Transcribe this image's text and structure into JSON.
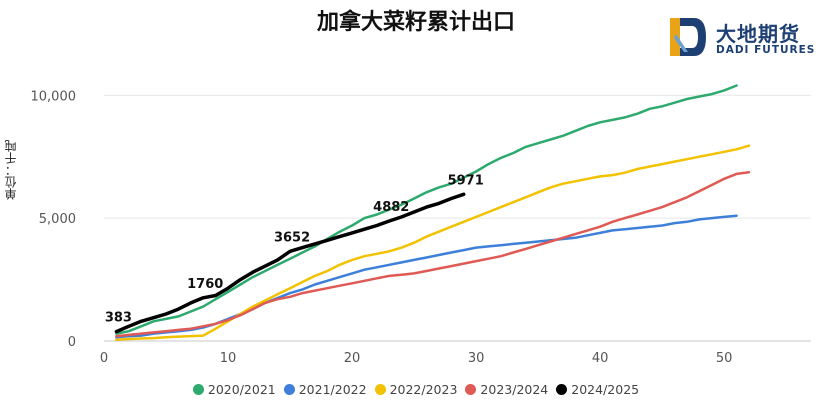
{
  "chart_data": {
    "type": "line",
    "title": "加拿大菜籽累计出口",
    "ylabel": "单位：千吨",
    "xlabel": "",
    "xlim": [
      0,
      57
    ],
    "ylim": [
      0,
      10500
    ],
    "x_ticks": [
      0,
      10,
      20,
      30,
      40,
      50
    ],
    "y_ticks": [
      0,
      5000,
      10000
    ],
    "y_tick_labels": [
      "0",
      "5,000",
      "10,000"
    ],
    "grid": true,
    "legend_position": "bottom",
    "series": [
      {
        "name": "2020/2021",
        "color": "#2eaa6e",
        "x": [
          1,
          2,
          3,
          4,
          5,
          6,
          7,
          8,
          9,
          10,
          11,
          12,
          13,
          14,
          15,
          16,
          17,
          18,
          19,
          20,
          21,
          22,
          23,
          24,
          25,
          26,
          27,
          28,
          29,
          30,
          31,
          32,
          33,
          34,
          35,
          36,
          37,
          38,
          39,
          40,
          41,
          42,
          43,
          44,
          45,
          46,
          47,
          48,
          49,
          50,
          51
        ],
        "values": [
          300,
          400,
          600,
          800,
          900,
          1000,
          1200,
          1400,
          1700,
          2000,
          2300,
          2600,
          2850,
          3100,
          3350,
          3600,
          3850,
          4150,
          4450,
          4700,
          5000,
          5150,
          5350,
          5550,
          5800,
          6050,
          6250,
          6400,
          6650,
          6900,
          7200,
          7450,
          7650,
          7900,
          8050,
          8200,
          8350,
          8550,
          8750,
          8900,
          9000,
          9100,
          9250,
          9450,
          9550,
          9700,
          9850,
          9950,
          10050,
          10200,
          10400
        ]
      },
      {
        "name": "2021/2022",
        "color": "#3d7fd9",
        "x": [
          1,
          2,
          3,
          4,
          5,
          6,
          7,
          8,
          9,
          10,
          11,
          12,
          13,
          14,
          15,
          16,
          17,
          18,
          19,
          20,
          21,
          22,
          23,
          24,
          25,
          26,
          27,
          28,
          29,
          30,
          31,
          32,
          33,
          34,
          35,
          36,
          37,
          38,
          39,
          40,
          41,
          42,
          43,
          44,
          45,
          46,
          47,
          48,
          49,
          50,
          51
        ],
        "values": [
          150,
          200,
          220,
          300,
          350,
          400,
          450,
          550,
          700,
          900,
          1100,
          1300,
          1550,
          1750,
          1950,
          2100,
          2300,
          2450,
          2600,
          2750,
          2900,
          3000,
          3100,
          3200,
          3300,
          3400,
          3500,
          3600,
          3700,
          3800,
          3850,
          3900,
          3950,
          4000,
          4050,
          4100,
          4150,
          4200,
          4300,
          4400,
          4500,
          4550,
          4600,
          4650,
          4700,
          4800,
          4850,
          4950,
          5000,
          5050,
          5100
        ]
      },
      {
        "name": "2022/2023",
        "color": "#f2c200",
        "x": [
          1,
          2,
          3,
          4,
          5,
          6,
          7,
          8,
          9,
          10,
          11,
          12,
          13,
          14,
          15,
          16,
          17,
          18,
          19,
          20,
          21,
          22,
          23,
          24,
          25,
          26,
          27,
          28,
          29,
          30,
          31,
          32,
          33,
          34,
          35,
          36,
          37,
          38,
          39,
          40,
          41,
          42,
          43,
          44,
          45,
          46,
          47,
          48,
          49,
          50,
          51,
          52
        ],
        "values": [
          50,
          80,
          100,
          120,
          150,
          180,
          200,
          220,
          500,
          800,
          1100,
          1400,
          1650,
          1900,
          2150,
          2400,
          2650,
          2850,
          3100,
          3300,
          3450,
          3550,
          3650,
          3800,
          4000,
          4250,
          4450,
          4650,
          4850,
          5050,
          5250,
          5450,
          5650,
          5850,
          6050,
          6250,
          6400,
          6500,
          6600,
          6700,
          6750,
          6850,
          7000,
          7100,
          7200,
          7300,
          7400,
          7500,
          7600,
          7700,
          7800,
          7950
        ]
      },
      {
        "name": "2023/2024",
        "color": "#e05a55",
        "x": [
          1,
          2,
          3,
          4,
          5,
          6,
          7,
          8,
          9,
          10,
          11,
          12,
          13,
          14,
          15,
          16,
          17,
          18,
          19,
          20,
          21,
          22,
          23,
          24,
          25,
          26,
          27,
          28,
          29,
          30,
          31,
          32,
          33,
          34,
          35,
          36,
          37,
          38,
          39,
          40,
          41,
          42,
          43,
          44,
          45,
          46,
          47,
          48,
          49,
          50,
          51,
          52
        ],
        "values": [
          200,
          250,
          300,
          350,
          400,
          450,
          500,
          600,
          700,
          850,
          1050,
          1300,
          1550,
          1700,
          1800,
          1950,
          2050,
          2150,
          2250,
          2350,
          2450,
          2550,
          2650,
          2700,
          2750,
          2850,
          2950,
          3050,
          3150,
          3250,
          3350,
          3450,
          3600,
          3750,
          3900,
          4050,
          4200,
          4350,
          4500,
          4650,
          4850,
          5000,
          5150,
          5300,
          5450,
          5650,
          5850,
          6100,
          6350,
          6600,
          6800,
          6870
        ]
      },
      {
        "name": "2024/2025",
        "color": "#000000",
        "x": [
          1,
          2,
          3,
          4,
          5,
          6,
          7,
          8,
          9,
          10,
          11,
          12,
          13,
          14,
          15,
          16,
          17,
          18,
          19,
          20,
          21,
          22,
          23,
          24,
          25,
          26,
          27,
          28,
          29
        ],
        "values": [
          383,
          600,
          800,
          950,
          1100,
          1300,
          1550,
          1760,
          1850,
          2150,
          2500,
          2800,
          3050,
          3300,
          3652,
          3800,
          3950,
          4100,
          4250,
          4400,
          4550,
          4700,
          4882,
          5050,
          5250,
          5450,
          5600,
          5800,
          5971
        ]
      }
    ],
    "annotations": [
      {
        "series": "2024/2025",
        "x": 1,
        "value": 383,
        "text": "383"
      },
      {
        "series": "2024/2025",
        "x": 8,
        "value": 1760,
        "text": "1760"
      },
      {
        "series": "2024/2025",
        "x": 15,
        "value": 3652,
        "text": "3652"
      },
      {
        "series": "2024/2025",
        "x": 23,
        "value": 4882,
        "text": "4882"
      },
      {
        "series": "2024/2025",
        "x": 29,
        "value": 5971,
        "text": "5971"
      }
    ]
  },
  "logo": {
    "name_cn": "大地期货",
    "name_en": "DADI FUTURES",
    "colors": {
      "primary": "#1d3f73",
      "accent": "#e8a317"
    }
  }
}
